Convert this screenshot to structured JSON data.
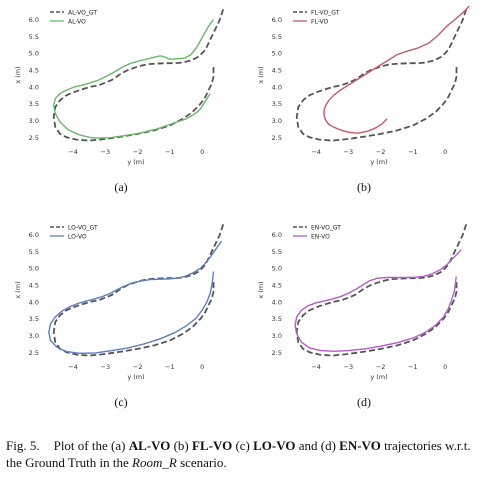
{
  "chart_data": [
    {
      "type": "line",
      "label": "(a)",
      "xlabel": "y (m)",
      "ylabel": "x (m)",
      "xlim": [
        -4.9,
        0.8
      ],
      "ylim": [
        2.3,
        6.4
      ],
      "xticks": [
        -4,
        -3,
        -2,
        -1,
        0
      ],
      "yticks": [
        2.5,
        3.0,
        3.5,
        4.0,
        4.5,
        5.0,
        5.5,
        6.0
      ],
      "legend": "top-left",
      "series": [
        {
          "name": "AL-VO_GT",
          "color": "#555555",
          "dash": true,
          "x": [
            0.65,
            0.55,
            0.4,
            0.25,
            0.1,
            -0.1,
            -0.35,
            -0.6,
            -0.85,
            -1.1,
            -1.4,
            -1.7,
            -2.0,
            -2.3,
            -2.5,
            -2.65,
            -2.8,
            -3.0,
            -3.2,
            -3.45,
            -3.7,
            -3.95,
            -4.2,
            -4.4,
            -4.55,
            -4.6,
            -4.55,
            -4.4,
            -4.2,
            -3.9,
            -3.5,
            -3.0,
            -2.5,
            -2.0,
            -1.5,
            -1.0,
            -0.6,
            -0.3,
            -0.05,
            0.1,
            0.2,
            0.3,
            0.35,
            0.35,
            0.35
          ],
          "y": [
            6.3,
            6.0,
            5.7,
            5.4,
            5.1,
            4.9,
            4.78,
            4.72,
            4.7,
            4.7,
            4.69,
            4.67,
            4.6,
            4.5,
            4.4,
            4.3,
            4.2,
            4.12,
            4.05,
            4.0,
            3.93,
            3.85,
            3.75,
            3.6,
            3.4,
            3.1,
            2.8,
            2.6,
            2.5,
            2.43,
            2.4,
            2.45,
            2.52,
            2.6,
            2.7,
            2.85,
            3.05,
            3.25,
            3.5,
            3.7,
            3.9,
            4.1,
            4.3,
            4.45,
            4.6
          ]
        },
        {
          "name": "AL-VO",
          "color": "#6ab86a",
          "dash": false,
          "x": [
            0.35,
            0.2,
            0.05,
            -0.15,
            -0.35,
            -0.55,
            -0.8,
            -1.0,
            -1.15,
            -1.3,
            -1.6,
            -1.9,
            -2.2,
            -2.45,
            -2.7,
            -2.95,
            -3.2,
            -3.45,
            -3.7,
            -3.95,
            -4.2,
            -4.4,
            -4.55,
            -4.6,
            -4.55,
            -4.4,
            -4.15,
            -3.8,
            -3.4,
            -2.9,
            -2.4,
            -1.9,
            -1.4,
            -1.0,
            -0.7,
            -0.5,
            -0.3,
            -0.15,
            -0.05,
            0.05,
            0.15,
            0.25
          ],
          "y": [
            6.0,
            5.8,
            5.55,
            5.2,
            4.95,
            4.85,
            4.83,
            4.82,
            4.88,
            4.92,
            4.85,
            4.78,
            4.7,
            4.6,
            4.45,
            4.32,
            4.2,
            4.12,
            4.05,
            4.0,
            3.9,
            3.8,
            3.65,
            3.45,
            3.2,
            2.95,
            2.72,
            2.57,
            2.48,
            2.48,
            2.55,
            2.63,
            2.75,
            2.88,
            2.98,
            3.05,
            3.15,
            3.25,
            3.35,
            3.5,
            3.65,
            3.8
          ]
        }
      ]
    },
    {
      "type": "line",
      "label": "(b)",
      "xlabel": "y (m)",
      "ylabel": "x (m)",
      "xlim": [
        -4.9,
        0.8
      ],
      "ylim": [
        2.3,
        6.4
      ],
      "xticks": [
        -4,
        -3,
        -2,
        -1,
        0
      ],
      "yticks": [
        2.5,
        3.0,
        3.5,
        4.0,
        4.5,
        5.0,
        5.5,
        6.0
      ],
      "legend": "top-left",
      "series": [
        {
          "name": "FL-VO_GT",
          "color": "#555555",
          "dash": true,
          "x": [
            0.65,
            0.55,
            0.4,
            0.25,
            0.1,
            -0.1,
            -0.35,
            -0.6,
            -0.85,
            -1.1,
            -1.4,
            -1.7,
            -2.0,
            -2.3,
            -2.5,
            -2.65,
            -2.8,
            -3.0,
            -3.2,
            -3.45,
            -3.7,
            -3.95,
            -4.2,
            -4.4,
            -4.55,
            -4.6,
            -4.55,
            -4.4,
            -4.2,
            -3.9,
            -3.5,
            -3.0,
            -2.5,
            -2.0,
            -1.5,
            -1.0,
            -0.6,
            -0.3,
            -0.05,
            0.1,
            0.2,
            0.3,
            0.35,
            0.35,
            0.35
          ],
          "y": [
            6.3,
            6.0,
            5.7,
            5.4,
            5.1,
            4.9,
            4.78,
            4.72,
            4.7,
            4.7,
            4.69,
            4.67,
            4.6,
            4.5,
            4.4,
            4.3,
            4.2,
            4.12,
            4.05,
            4.0,
            3.93,
            3.85,
            3.75,
            3.6,
            3.4,
            3.1,
            2.8,
            2.6,
            2.5,
            2.43,
            2.4,
            2.45,
            2.52,
            2.6,
            2.7,
            2.85,
            3.05,
            3.25,
            3.5,
            3.7,
            3.9,
            4.1,
            4.3,
            4.45,
            4.6
          ]
        },
        {
          "name": "FL-VO",
          "color": "#c45a66",
          "dash": false,
          "x": [
            0.75,
            0.55,
            0.3,
            0.05,
            -0.2,
            -0.5,
            -0.85,
            -1.2,
            -1.5,
            -1.75,
            -2.0,
            -2.25,
            -2.5,
            -2.75,
            -3.0,
            -3.25,
            -3.45,
            -3.6,
            -3.7,
            -3.75,
            -3.75,
            -3.7,
            -3.6,
            -3.45,
            -3.25,
            -3.0,
            -2.7,
            -2.4,
            -2.15,
            -1.95,
            -1.8
          ],
          "y": [
            6.4,
            6.2,
            6.0,
            5.8,
            5.55,
            5.3,
            5.15,
            5.05,
            4.95,
            4.8,
            4.65,
            4.5,
            4.35,
            4.2,
            4.05,
            3.9,
            3.75,
            3.6,
            3.45,
            3.3,
            3.15,
            3.0,
            2.88,
            2.8,
            2.72,
            2.65,
            2.62,
            2.68,
            2.78,
            2.9,
            3.05
          ]
        }
      ]
    },
    {
      "type": "line",
      "label": "(c)",
      "xlabel": "y (m)",
      "ylabel": "x (m)",
      "xlim": [
        -4.9,
        0.8
      ],
      "ylim": [
        2.3,
        6.4
      ],
      "xticks": [
        -4,
        -3,
        -2,
        -1,
        0
      ],
      "yticks": [
        2.5,
        3.0,
        3.5,
        4.0,
        4.5,
        5.0,
        5.5,
        6.0
      ],
      "legend": "top-left",
      "series": [
        {
          "name": "LO-VO_GT",
          "color": "#555555",
          "dash": true,
          "x": [
            0.65,
            0.55,
            0.4,
            0.25,
            0.1,
            -0.1,
            -0.35,
            -0.6,
            -0.85,
            -1.1,
            -1.4,
            -1.7,
            -2.0,
            -2.3,
            -2.5,
            -2.65,
            -2.8,
            -3.0,
            -3.2,
            -3.45,
            -3.7,
            -3.95,
            -4.2,
            -4.4,
            -4.55,
            -4.6,
            -4.55,
            -4.4,
            -4.2,
            -3.9,
            -3.5,
            -3.0,
            -2.5,
            -2.0,
            -1.5,
            -1.0,
            -0.6,
            -0.3,
            -0.05,
            0.1,
            0.2,
            0.3,
            0.35,
            0.35,
            0.35
          ],
          "y": [
            6.3,
            6.0,
            5.7,
            5.4,
            5.1,
            4.9,
            4.78,
            4.72,
            4.7,
            4.7,
            4.69,
            4.67,
            4.6,
            4.5,
            4.4,
            4.3,
            4.2,
            4.12,
            4.05,
            4.0,
            3.93,
            3.85,
            3.75,
            3.6,
            3.4,
            3.1,
            2.8,
            2.6,
            2.5,
            2.43,
            2.4,
            2.45,
            2.52,
            2.6,
            2.7,
            2.85,
            3.05,
            3.25,
            3.5,
            3.7,
            3.9,
            4.1,
            4.3,
            4.45,
            4.6
          ]
        },
        {
          "name": "LO-VO",
          "color": "#5b7fbf",
          "dash": false,
          "x": [
            0.6,
            0.45,
            0.3,
            0.15,
            -0.05,
            -0.3,
            -0.55,
            -0.8,
            -1.05,
            -1.3,
            -1.6,
            -1.9,
            -2.2,
            -2.45,
            -2.65,
            -2.85,
            -3.1,
            -3.35,
            -3.6,
            -3.85,
            -4.1,
            -4.35,
            -4.55,
            -4.7,
            -4.75,
            -4.7,
            -4.5,
            -4.2,
            -3.8,
            -3.3,
            -2.8,
            -2.3,
            -1.8,
            -1.3,
            -0.85,
            -0.5,
            -0.2,
            0.0,
            0.15,
            0.25,
            0.3,
            0.33,
            0.35
          ],
          "y": [
            5.8,
            5.6,
            5.4,
            5.2,
            5.0,
            4.85,
            4.75,
            4.7,
            4.68,
            4.67,
            4.66,
            4.62,
            4.55,
            4.45,
            4.35,
            4.25,
            4.15,
            4.08,
            4.02,
            3.95,
            3.85,
            3.72,
            3.55,
            3.35,
            3.1,
            2.85,
            2.65,
            2.52,
            2.47,
            2.48,
            2.55,
            2.63,
            2.75,
            2.9,
            3.08,
            3.28,
            3.5,
            3.75,
            4.0,
            4.25,
            4.5,
            4.7,
            4.9
          ]
        }
      ]
    },
    {
      "type": "line",
      "label": "(d)",
      "xlabel": "y (m)",
      "ylabel": "x (m)",
      "xlim": [
        -4.9,
        0.8
      ],
      "ylim": [
        2.3,
        6.4
      ],
      "xticks": [
        -4,
        -3,
        -2,
        -1,
        0
      ],
      "yticks": [
        2.5,
        3.0,
        3.5,
        4.0,
        4.5,
        5.0,
        5.5,
        6.0
      ],
      "legend": "top-left",
      "series": [
        {
          "name": "EN-VO_GT",
          "color": "#555555",
          "dash": true,
          "x": [
            0.65,
            0.55,
            0.4,
            0.25,
            0.1,
            -0.1,
            -0.35,
            -0.6,
            -0.85,
            -1.1,
            -1.4,
            -1.7,
            -2.0,
            -2.3,
            -2.5,
            -2.65,
            -2.8,
            -3.0,
            -3.2,
            -3.45,
            -3.7,
            -3.95,
            -4.2,
            -4.4,
            -4.55,
            -4.6,
            -4.55,
            -4.4,
            -4.2,
            -3.9,
            -3.5,
            -3.0,
            -2.5,
            -2.0,
            -1.5,
            -1.0,
            -0.6,
            -0.3,
            -0.05,
            0.1,
            0.2,
            0.3,
            0.35,
            0.35,
            0.35
          ],
          "y": [
            6.3,
            6.0,
            5.7,
            5.4,
            5.1,
            4.9,
            4.78,
            4.72,
            4.7,
            4.7,
            4.69,
            4.67,
            4.6,
            4.5,
            4.4,
            4.3,
            4.2,
            4.12,
            4.05,
            4.0,
            3.93,
            3.85,
            3.75,
            3.6,
            3.4,
            3.1,
            2.8,
            2.6,
            2.5,
            2.43,
            2.4,
            2.45,
            2.52,
            2.6,
            2.7,
            2.85,
            3.05,
            3.25,
            3.5,
            3.7,
            3.9,
            4.1,
            4.3,
            4.45,
            4.6
          ]
        },
        {
          "name": "EN-VO",
          "color": "#b25ec8",
          "dash": false,
          "x": [
            0.5,
            0.35,
            0.2,
            0.05,
            -0.15,
            -0.4,
            -0.65,
            -0.9,
            -1.2,
            -1.5,
            -1.8,
            -2.1,
            -2.35,
            -2.55,
            -2.75,
            -3.0,
            -3.25,
            -3.5,
            -3.75,
            -4.0,
            -4.25,
            -4.45,
            -4.6,
            -4.65,
            -4.6,
            -4.45,
            -4.2,
            -3.85,
            -3.45,
            -3.0,
            -2.5,
            -2.0,
            -1.5,
            -1.0,
            -0.6,
            -0.3,
            -0.05,
            0.1,
            0.2,
            0.28,
            0.32,
            0.34
          ],
          "y": [
            5.55,
            5.4,
            5.25,
            5.1,
            4.95,
            4.83,
            4.76,
            4.73,
            4.72,
            4.72,
            4.72,
            4.7,
            4.62,
            4.5,
            4.38,
            4.25,
            4.15,
            4.08,
            4.02,
            3.97,
            3.88,
            3.75,
            3.55,
            3.3,
            3.05,
            2.8,
            2.63,
            2.55,
            2.53,
            2.55,
            2.6,
            2.68,
            2.78,
            2.92,
            3.1,
            3.3,
            3.55,
            3.8,
            4.05,
            4.3,
            4.55,
            4.75
          ]
        }
      ]
    }
  ],
  "caption": {
    "fig_label": "Fig. 5.",
    "text_1": "Plot of the (a) ",
    "m1": "AL-VO",
    "text_2": " (b) ",
    "m2": "FL-VO",
    "text_3": " (c) ",
    "m3": "LO-VO",
    "text_4": " and (d) ",
    "m4": "EN-VO",
    "text_5": " trajectories w.r.t. the Ground Truth in the ",
    "scenario": "Room_R",
    "text_6": " scenario."
  }
}
